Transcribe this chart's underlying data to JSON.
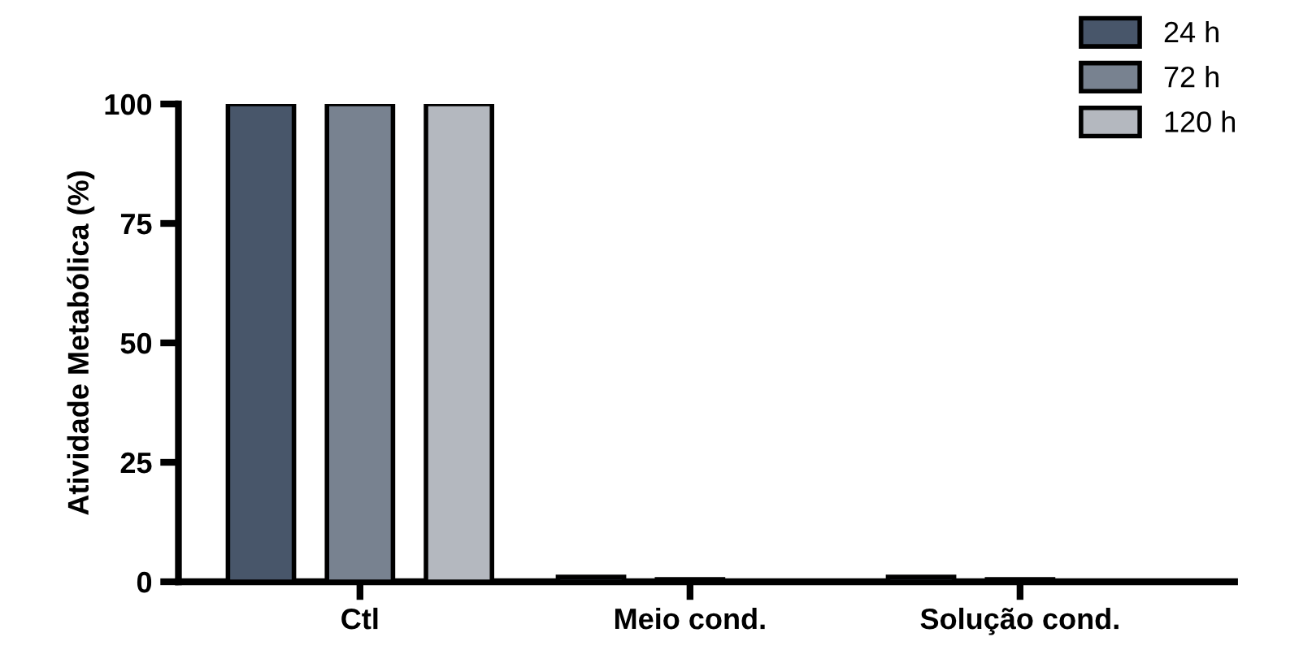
{
  "chart_data": {
    "type": "bar",
    "ylabel": "Atividade Metabólica (%)",
    "categories": [
      "Ctl",
      "Meio cond.",
      "Solução cond."
    ],
    "series": [
      {
        "name": "24 h",
        "color": "#48566a",
        "values": [
          100,
          1,
          1
        ]
      },
      {
        "name": "72 h",
        "color": "#788290",
        "values": [
          100,
          0.5,
          0.5
        ]
      },
      {
        "name": "120 h",
        "color": "#b4b8bf",
        "values": [
          100,
          0.2,
          0.1
        ]
      }
    ],
    "ylim": [
      0,
      100
    ],
    "yticks": [
      0,
      25,
      50,
      75,
      100
    ],
    "grid": false,
    "legend": "top right"
  }
}
